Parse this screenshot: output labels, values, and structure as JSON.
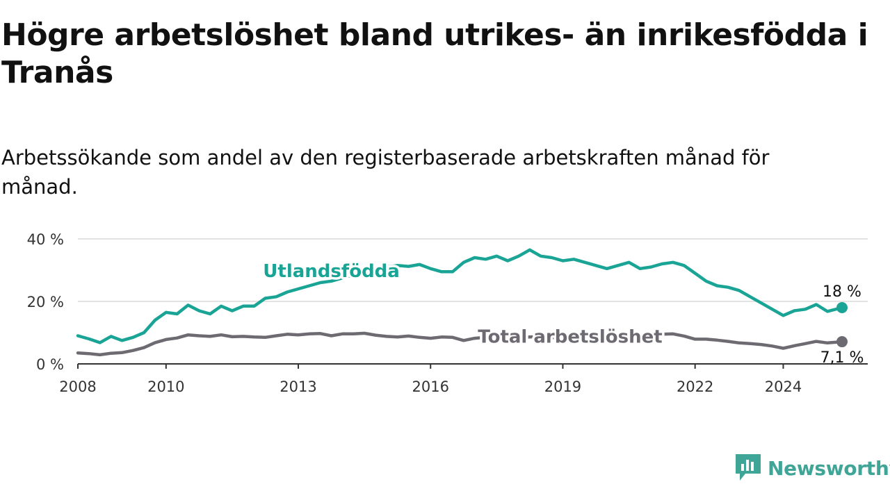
{
  "header": {
    "title": "Högre arbetslöshet bland utrikes- än inrikesfödda i Tranås",
    "subtitle": "Arbetssökande som andel av den registerbaserade arbetskraften månad för månad."
  },
  "branding": {
    "name": "Newsworthy",
    "icon": "newsworthy-logo-icon",
    "color": "#3fa597"
  },
  "chart_data": {
    "type": "line",
    "title": "Högre arbetslöshet bland utrikes- än inrikesfödda i Tranås",
    "subtitle": "Arbetssökande som andel av den registerbaserade arbetskraften månad för månad.",
    "xlabel": "",
    "ylabel": "",
    "x_ticks": [
      "2008",
      "2010",
      "2013",
      "2016",
      "2019",
      "2022",
      "2024"
    ],
    "y_ticks": [
      "0 %",
      "20 %",
      "40 %"
    ],
    "ylim": [
      0,
      40
    ],
    "xlim": [
      "2008-01",
      "2025-12"
    ],
    "grid": "horizontal",
    "series": [
      {
        "name": "Utlandsfödda",
        "color": "#1aa495",
        "end_label": "18 %",
        "points": [
          [
            "2008-01",
            9.0
          ],
          [
            "2008-04",
            8.0
          ],
          [
            "2008-07",
            6.8
          ],
          [
            "2008-10",
            8.8
          ],
          [
            "2009-01",
            7.5
          ],
          [
            "2009-04",
            8.5
          ],
          [
            "2009-07",
            10.0
          ],
          [
            "2009-10",
            14.0
          ],
          [
            "2010-01",
            16.5
          ],
          [
            "2010-04",
            16.0
          ],
          [
            "2010-07",
            18.8
          ],
          [
            "2010-10",
            17.0
          ],
          [
            "2011-01",
            16.0
          ],
          [
            "2011-04",
            18.5
          ],
          [
            "2011-07",
            17.0
          ],
          [
            "2011-10",
            18.5
          ],
          [
            "2012-01",
            18.5
          ],
          [
            "2012-04",
            21.0
          ],
          [
            "2012-07",
            21.5
          ],
          [
            "2012-10",
            23.0
          ],
          [
            "2013-01",
            24.0
          ],
          [
            "2013-04",
            25.0
          ],
          [
            "2013-07",
            26.0
          ],
          [
            "2013-10",
            26.5
          ],
          [
            "2014-01",
            27.5
          ],
          [
            "2014-04",
            28.5
          ],
          [
            "2014-07",
            29.5
          ],
          [
            "2014-10",
            30.0
          ],
          [
            "2015-01",
            31.0
          ],
          [
            "2015-04",
            31.5
          ],
          [
            "2015-07",
            31.2
          ],
          [
            "2015-10",
            31.8
          ],
          [
            "2016-01",
            30.5
          ],
          [
            "2016-04",
            29.5
          ],
          [
            "2016-07",
            29.5
          ],
          [
            "2016-10",
            32.5
          ],
          [
            "2017-01",
            34.0
          ],
          [
            "2017-04",
            33.5
          ],
          [
            "2017-07",
            34.5
          ],
          [
            "2017-10",
            33.0
          ],
          [
            "2018-01",
            34.5
          ],
          [
            "2018-04",
            36.5
          ],
          [
            "2018-07",
            34.5
          ],
          [
            "2018-10",
            34.0
          ],
          [
            "2019-01",
            33.0
          ],
          [
            "2019-04",
            33.5
          ],
          [
            "2019-07",
            32.5
          ],
          [
            "2019-10",
            31.5
          ],
          [
            "2020-01",
            30.5
          ],
          [
            "2020-04",
            31.5
          ],
          [
            "2020-07",
            32.5
          ],
          [
            "2020-10",
            30.5
          ],
          [
            "2021-01",
            31.0
          ],
          [
            "2021-04",
            32.0
          ],
          [
            "2021-07",
            32.5
          ],
          [
            "2021-10",
            31.5
          ],
          [
            "2022-01",
            29.0
          ],
          [
            "2022-04",
            26.5
          ],
          [
            "2022-07",
            25.0
          ],
          [
            "2022-10",
            24.5
          ],
          [
            "2023-01",
            23.5
          ],
          [
            "2023-04",
            21.5
          ],
          [
            "2023-07",
            19.5
          ],
          [
            "2023-10",
            17.5
          ],
          [
            "2024-01",
            15.5
          ],
          [
            "2024-04",
            17.0
          ],
          [
            "2024-07",
            17.5
          ],
          [
            "2024-10",
            19.0
          ],
          [
            "2025-01",
            16.8
          ],
          [
            "2025-05",
            18.0
          ]
        ]
      },
      {
        "name": "Total arbetslöshet",
        "color": "#6d6a72",
        "end_label": "7,1 %",
        "points": [
          [
            "2008-01",
            3.5
          ],
          [
            "2008-04",
            3.3
          ],
          [
            "2008-07",
            2.9
          ],
          [
            "2008-10",
            3.4
          ],
          [
            "2009-01",
            3.6
          ],
          [
            "2009-04",
            4.3
          ],
          [
            "2009-07",
            5.2
          ],
          [
            "2009-10",
            6.8
          ],
          [
            "2010-01",
            7.8
          ],
          [
            "2010-04",
            8.3
          ],
          [
            "2010-07",
            9.3
          ],
          [
            "2010-10",
            9.0
          ],
          [
            "2011-01",
            8.8
          ],
          [
            "2011-04",
            9.3
          ],
          [
            "2011-07",
            8.7
          ],
          [
            "2011-10",
            8.8
          ],
          [
            "2012-01",
            8.6
          ],
          [
            "2012-04",
            8.5
          ],
          [
            "2012-07",
            9.0
          ],
          [
            "2012-10",
            9.5
          ],
          [
            "2013-01",
            9.3
          ],
          [
            "2013-04",
            9.6
          ],
          [
            "2013-07",
            9.7
          ],
          [
            "2013-10",
            9.0
          ],
          [
            "2014-01",
            9.6
          ],
          [
            "2014-04",
            9.6
          ],
          [
            "2014-07",
            9.8
          ],
          [
            "2014-10",
            9.2
          ],
          [
            "2015-01",
            8.8
          ],
          [
            "2015-04",
            8.6
          ],
          [
            "2015-07",
            8.9
          ],
          [
            "2015-10",
            8.5
          ],
          [
            "2016-01",
            8.2
          ],
          [
            "2016-04",
            8.6
          ],
          [
            "2016-07",
            8.5
          ],
          [
            "2016-10",
            7.5
          ],
          [
            "2017-01",
            8.2
          ],
          [
            "2017-04",
            8.5
          ],
          [
            "2017-07",
            8.8
          ],
          [
            "2017-10",
            8.6
          ],
          [
            "2018-01",
            8.4
          ],
          [
            "2018-04",
            8.6
          ],
          [
            "2018-07",
            8.8
          ],
          [
            "2018-10",
            8.4
          ],
          [
            "2019-01",
            8.5
          ],
          [
            "2019-04",
            8.8
          ],
          [
            "2019-07",
            9.0
          ],
          [
            "2019-10",
            8.7
          ],
          [
            "2020-01",
            8.7
          ],
          [
            "2020-04",
            9.2
          ],
          [
            "2020-07",
            9.4
          ],
          [
            "2020-10",
            9.3
          ],
          [
            "2021-01",
            9.3
          ],
          [
            "2021-04",
            9.5
          ],
          [
            "2021-07",
            9.6
          ],
          [
            "2021-10",
            8.9
          ],
          [
            "2022-01",
            7.9
          ],
          [
            "2022-04",
            7.9
          ],
          [
            "2022-07",
            7.6
          ],
          [
            "2022-10",
            7.2
          ],
          [
            "2023-01",
            6.7
          ],
          [
            "2023-04",
            6.5
          ],
          [
            "2023-07",
            6.2
          ],
          [
            "2023-10",
            5.7
          ],
          [
            "2024-01",
            5.0
          ],
          [
            "2024-04",
            5.8
          ],
          [
            "2024-07",
            6.5
          ],
          [
            "2024-10",
            7.2
          ],
          [
            "2025-01",
            6.7
          ],
          [
            "2025-05",
            7.1
          ]
        ]
      }
    ]
  }
}
